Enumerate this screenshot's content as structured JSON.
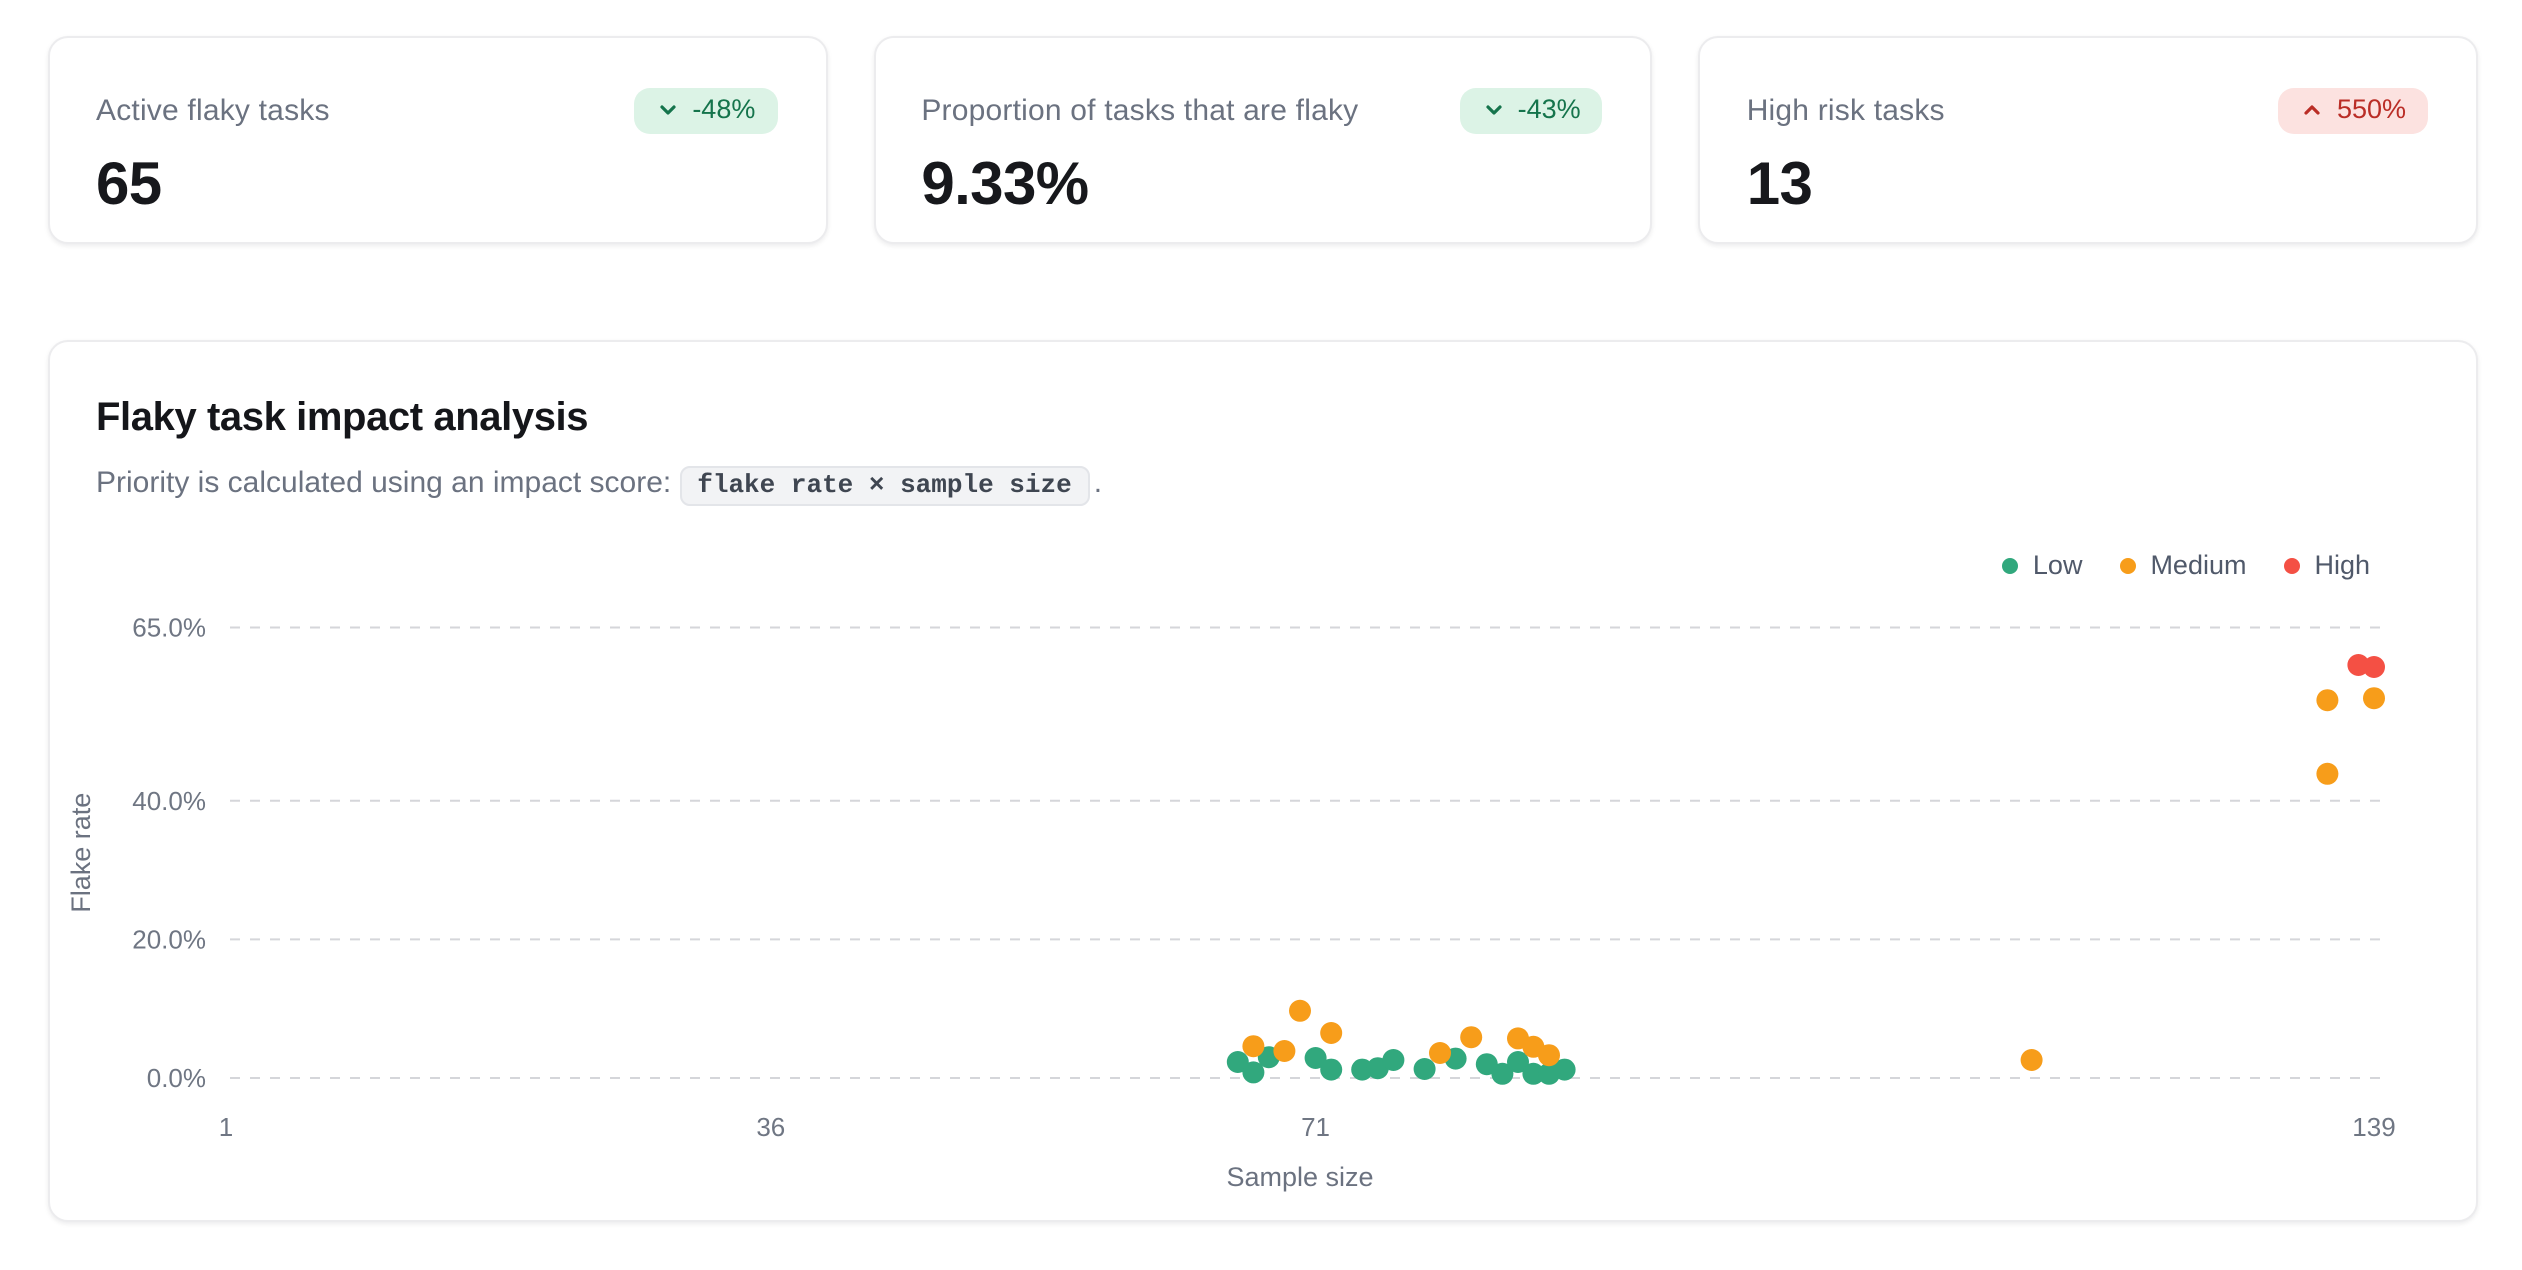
{
  "stat_cards": [
    {
      "label": "Active flaky tasks",
      "value": "65",
      "badge": {
        "text": "-48%",
        "direction": "down",
        "tone": "positive"
      }
    },
    {
      "label": "Proportion of tasks that are flaky",
      "value": "9.33%",
      "badge": {
        "text": "-43%",
        "direction": "down",
        "tone": "positive"
      }
    },
    {
      "label": "High risk tasks",
      "value": "13",
      "badge": {
        "text": "550%",
        "direction": "up",
        "tone": "negative"
      }
    }
  ],
  "impact_card": {
    "title": "Flaky task impact analysis",
    "subtitle_prefix": "Priority is calculated using an impact score:",
    "subtitle_code": "flake rate × sample size",
    "subtitle_suffix": "."
  },
  "chart_data": {
    "type": "scatter",
    "title": "Flaky task impact analysis",
    "xlabel": "Sample size",
    "ylabel": "Flake rate",
    "xlim": [
      1,
      139
    ],
    "ylim": [
      0,
      65
    ],
    "x_ticks": [
      1,
      36,
      71,
      139
    ],
    "y_ticks": [
      0,
      20,
      40,
      65
    ],
    "y_tick_format": "one-decimal-percent",
    "grid": "horizontal-dashed",
    "legend_position": "top-right",
    "series": [
      {
        "name": "Low",
        "color": "#31a87d",
        "points": [
          [
            66,
            2.3
          ],
          [
            67,
            0.8
          ],
          [
            68,
            3.0
          ],
          [
            71,
            2.9
          ],
          [
            72,
            1.2
          ],
          [
            74,
            1.2
          ],
          [
            75,
            1.4
          ],
          [
            76,
            2.6
          ],
          [
            78,
            1.3
          ],
          [
            80,
            2.8
          ],
          [
            82,
            2.0
          ],
          [
            83,
            0.6
          ],
          [
            84,
            2.3
          ],
          [
            85,
            0.6
          ],
          [
            86,
            0.6
          ],
          [
            87,
            1.2
          ]
        ]
      },
      {
        "name": "Medium",
        "color": "#f79d1a",
        "points": [
          [
            67,
            4.6
          ],
          [
            69,
            3.9
          ],
          [
            70,
            9.7
          ],
          [
            72,
            6.5
          ],
          [
            79,
            3.6
          ],
          [
            81,
            5.9
          ],
          [
            84,
            5.7
          ],
          [
            85,
            4.5
          ],
          [
            86,
            3.3
          ],
          [
            117,
            2.6
          ],
          [
            136,
            43.9
          ],
          [
            136,
            54.5
          ],
          [
            139,
            54.8
          ]
        ]
      },
      {
        "name": "High",
        "color": "#f45044",
        "points": [
          [
            138,
            59.6
          ],
          [
            139,
            59.3
          ]
        ]
      }
    ]
  },
  "colors": {
    "badge_positive_bg": "#dcf3e6",
    "badge_positive_fg": "#15744c",
    "badge_negative_bg": "#fce2e0",
    "badge_negative_fg": "#ba2d26",
    "gridline": "#d5d6da",
    "axis_text": "#6f7683",
    "label_text": "#6b7280",
    "value_text": "#17181c"
  }
}
